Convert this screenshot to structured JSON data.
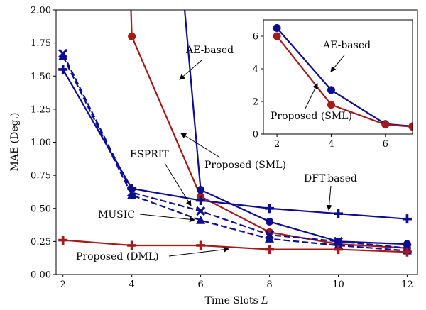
{
  "chart_data": [
    {
      "type": "line",
      "xlabel": "Time Slots",
      "xlabel_italic": "L",
      "ylabel": "MAE (Deg.)",
      "xlim": [
        1.8,
        12.3
      ],
      "ylim": [
        0,
        2.0
      ],
      "xticks": [
        2,
        4,
        6,
        8,
        10,
        12
      ],
      "yticks": [
        "0.00",
        "0.25",
        "0.50",
        "0.75",
        "1.00",
        "1.25",
        "1.50",
        "1.75",
        "2.00"
      ],
      "grid": false,
      "series": [
        {
          "key": "sml",
          "color": "#a31b1b",
          "dashed": false,
          "marker": "circle",
          "x": [
            4,
            6,
            8,
            10,
            12
          ],
          "y": [
            1.8,
            0.59,
            0.32,
            0.23,
            0.2
          ],
          "extra": [
            3.5,
            6.0
          ]
        },
        {
          "key": "ae",
          "color": "#0d0d8f",
          "dashed": false,
          "marker": "circle",
          "x": [
            6,
            8,
            10,
            12
          ],
          "y": [
            0.64,
            0.4,
            0.25,
            0.23
          ],
          "extra": [
            4.0,
            6.5
          ]
        },
        {
          "key": "dft",
          "color": "#0d0d8f",
          "dashed": false,
          "marker": "plus",
          "x": [
            2,
            4,
            6,
            8,
            10,
            12
          ],
          "y": [
            1.55,
            0.65,
            0.56,
            0.5,
            0.46,
            0.42
          ]
        },
        {
          "key": "esprit",
          "color": "#0d0d8f",
          "dashed": true,
          "marker": "x",
          "x": [
            2,
            4,
            6,
            8,
            10,
            12
          ],
          "y": [
            1.67,
            0.62,
            0.48,
            0.3,
            0.25,
            0.2
          ]
        },
        {
          "key": "music",
          "color": "#0d0d8f",
          "dashed": true,
          "marker": "triangle",
          "x": [
            2,
            4,
            6,
            8,
            10,
            12
          ],
          "y": [
            1.65,
            0.6,
            0.41,
            0.27,
            0.22,
            0.18
          ]
        },
        {
          "key": "dml",
          "color": "#a31b1b",
          "dashed": false,
          "marker": "plus",
          "x": [
            2,
            4,
            6,
            8,
            10,
            12
          ],
          "y": [
            0.26,
            0.22,
            0.22,
            0.19,
            0.19,
            0.17
          ]
        }
      ],
      "annotations": [
        {
          "text": "AE-based",
          "series": "ae"
        },
        {
          "text": "Proposed (SML)",
          "series": "sml"
        },
        {
          "text": "ESPRIT",
          "series": "esprit"
        },
        {
          "text": "DFT-based",
          "series": "dft"
        },
        {
          "text": "MUSIC",
          "series": "music"
        },
        {
          "text": "Proposed (DML)",
          "series": "dml"
        }
      ]
    },
    {
      "type": "line",
      "inset": true,
      "xlim": [
        1.5,
        7.0
      ],
      "ylim": [
        0,
        7
      ],
      "xticks": [
        2,
        4,
        6
      ],
      "yticks": [
        "0",
        "2",
        "4",
        "6"
      ],
      "series": [
        {
          "key": "ae",
          "color": "#0d0d8f",
          "marker": "circle",
          "x": [
            2,
            4,
            6,
            7
          ],
          "y": [
            6.5,
            2.7,
            0.62,
            0.48
          ]
        },
        {
          "key": "sml",
          "color": "#a31b1b",
          "marker": "circle",
          "x": [
            2,
            4,
            6,
            7
          ],
          "y": [
            6.0,
            1.8,
            0.58,
            0.45
          ]
        }
      ],
      "annotations": [
        {
          "text": "AE-based",
          "series": "ae"
        },
        {
          "text": "Proposed (SML)",
          "series": "sml"
        }
      ]
    }
  ]
}
